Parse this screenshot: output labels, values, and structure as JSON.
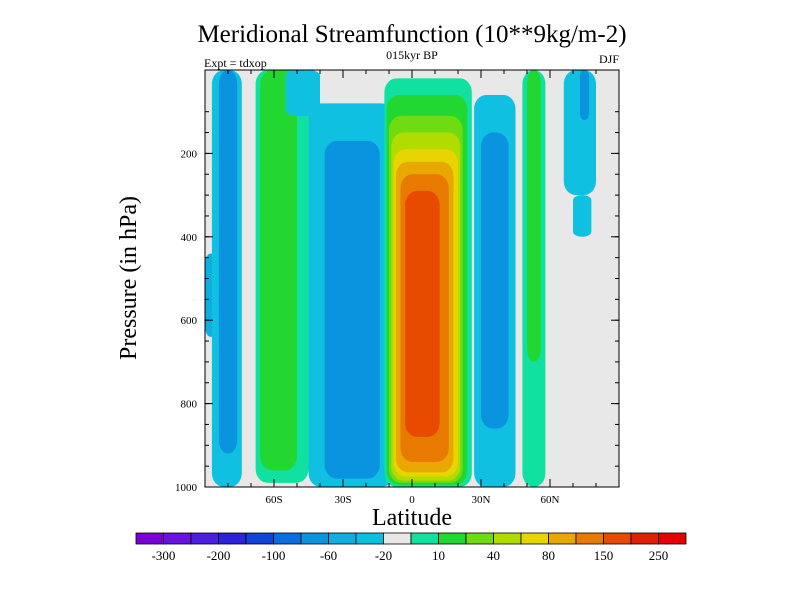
{
  "chart_data": {
    "type": "heatmap",
    "title": "Meridional Streamfunction (10**9kg/m-2)",
    "subtitle_left": "Expt = tdxop",
    "subtitle_center": "015kyr BP",
    "subtitle_right": "DJF",
    "xlabel": "Latitude",
    "ylabel": "Pressure (in hPa)",
    "xlim": [
      -90,
      90
    ],
    "ylim": [
      0,
      1000
    ],
    "y_inverted": true,
    "x_ticks": [
      {
        "value": -60,
        "label": "60S"
      },
      {
        "value": -30,
        "label": "30S"
      },
      {
        "value": 0,
        "label": "0"
      },
      {
        "value": 30,
        "label": "30N"
      },
      {
        "value": 60,
        "label": "60N"
      }
    ],
    "y_ticks": [
      {
        "value": 200,
        "label": "200"
      },
      {
        "value": 400,
        "label": "400"
      },
      {
        "value": 600,
        "label": "600"
      },
      {
        "value": 800,
        "label": "800"
      },
      {
        "value": 1000,
        "label": "1000"
      }
    ],
    "colorbar": {
      "colors": [
        "#7a00d8",
        "#6a10e0",
        "#4b1ee0",
        "#2c22d8",
        "#1044d8",
        "#0a6ee0",
        "#0a94e0",
        "#10aee0",
        "#0ac0e0",
        "#e8e8e8",
        "#10e0a0",
        "#22d830",
        "#6edc10",
        "#b0dc00",
        "#e8d400",
        "#e8a800",
        "#e87a00",
        "#e84a00",
        "#e02000",
        "#e80000"
      ],
      "labels": [
        {
          "after_index": 1,
          "text": "-300"
        },
        {
          "after_index": 3,
          "text": "-200"
        },
        {
          "after_index": 5,
          "text": "-100"
        },
        {
          "after_index": 7,
          "text": "-60"
        },
        {
          "after_index": 9,
          "text": "-20"
        },
        {
          "after_index": 11,
          "text": "10"
        },
        {
          "after_index": 13,
          "text": "40"
        },
        {
          "after_index": 15,
          "text": "80"
        },
        {
          "after_index": 17,
          "text": "150"
        },
        {
          "after_index": 19,
          "text": "250"
        }
      ]
    },
    "regions": [
      {
        "lon": [
          -90,
          -85
        ],
        "p": [
          440,
          640
        ],
        "color": "#10aee0"
      },
      {
        "lon": [
          -87,
          -74
        ],
        "p": [
          0,
          1000
        ],
        "color": "#10c0e0"
      },
      {
        "lon": [
          -84,
          -76
        ],
        "p": [
          0,
          920
        ],
        "color": "#0a94e0"
      },
      {
        "lon": [
          -68,
          -45
        ],
        "p": [
          0,
          990
        ],
        "color": "#10e0a0"
      },
      {
        "lon": [
          -66,
          -50
        ],
        "p": [
          0,
          960
        ],
        "color": "#22d830"
      },
      {
        "lon": [
          -55,
          -40
        ],
        "p": [
          0,
          110
        ],
        "color": "#10c0e0"
      },
      {
        "lon": [
          -45,
          -8
        ],
        "p": [
          80,
          1000
        ],
        "color": "#10c0e0"
      },
      {
        "lon": [
          -38,
          -14
        ],
        "p": [
          170,
          980
        ],
        "color": "#0a94e0"
      },
      {
        "lon": [
          -12,
          26
        ],
        "p": [
          20,
          1000
        ],
        "color": "#10e0a0"
      },
      {
        "lon": [
          -11,
          24
        ],
        "p": [
          60,
          995
        ],
        "color": "#22d830"
      },
      {
        "lon": [
          -10,
          22
        ],
        "p": [
          110,
          990
        ],
        "color": "#6edc10"
      },
      {
        "lon": [
          -9,
          21
        ],
        "p": [
          150,
          985
        ],
        "color": "#b0dc00"
      },
      {
        "lon": [
          -8,
          20
        ],
        "p": [
          190,
          975
        ],
        "color": "#e8d400"
      },
      {
        "lon": [
          -7,
          18
        ],
        "p": [
          220,
          965
        ],
        "color": "#e8a800"
      },
      {
        "lon": [
          -5,
          16
        ],
        "p": [
          250,
          940
        ],
        "color": "#e87a00"
      },
      {
        "lon": [
          -3,
          12
        ],
        "p": [
          290,
          880
        ],
        "color": "#e84a00"
      },
      {
        "lon": [
          27,
          45
        ],
        "p": [
          60,
          1000
        ],
        "color": "#10c0e0"
      },
      {
        "lon": [
          30,
          42
        ],
        "p": [
          150,
          860
        ],
        "color": "#0a94e0"
      },
      {
        "lon": [
          48,
          58
        ],
        "p": [
          0,
          1000
        ],
        "color": "#10e0a0"
      },
      {
        "lon": [
          50,
          56
        ],
        "p": [
          0,
          700
        ],
        "color": "#22d830"
      },
      {
        "lon": [
          66,
          80
        ],
        "p": [
          0,
          300
        ],
        "color": "#10c0e0"
      },
      {
        "lon": [
          70,
          78
        ],
        "p": [
          300,
          400
        ],
        "color": "#10c0e0"
      },
      {
        "lon": [
          73,
          77
        ],
        "p": [
          0,
          120
        ],
        "color": "#0a94e0"
      }
    ]
  }
}
